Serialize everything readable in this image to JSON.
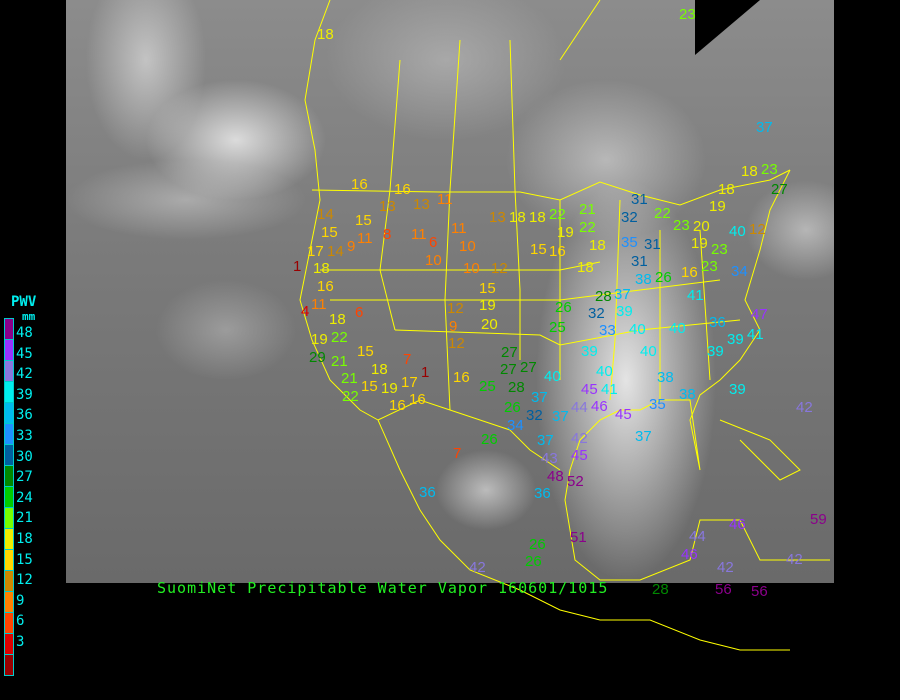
{
  "caption": "SuomiNet Precipitable Water Vapor 160601/1015",
  "legend": {
    "title": "PWV",
    "unit": "mm",
    "labels": [
      "48",
      "45",
      "42",
      "39",
      "36",
      "33",
      "30",
      "27",
      "24",
      "21",
      "18",
      "15",
      "12",
      "9",
      "6",
      "3"
    ],
    "colors": [
      "#8b008b",
      "#9933ff",
      "#8877dd",
      "#00eeee",
      "#00bbee",
      "#1e90ff",
      "#005f9f",
      "#008800",
      "#00cc00",
      "#77ff00",
      "#eeee00",
      "#ffd700",
      "#cc8800",
      "#ff8000",
      "#ff4400",
      "#dd0000",
      "#990000"
    ]
  },
  "border_color": "#ffff00",
  "stations": [
    18,
    16,
    16,
    13,
    13,
    11,
    14,
    15,
    15,
    11,
    9,
    8,
    11,
    6,
    10,
    11,
    10,
    10,
    12,
    1,
    18,
    14,
    17,
    16,
    11,
    4,
    18,
    6,
    19,
    22,
    29,
    21,
    15,
    18,
    21,
    22,
    15,
    19,
    17,
    16,
    16,
    7,
    1,
    16,
    12,
    9,
    12,
    19,
    20,
    15,
    18,
    36,
    7,
    13,
    18,
    22,
    19,
    21,
    22,
    18,
    16,
    18,
    15,
    27,
    27,
    27,
    25,
    28,
    26,
    37,
    32,
    37,
    34,
    40,
    44,
    26,
    37,
    43,
    45,
    48,
    52,
    36,
    42,
    26,
    26,
    51,
    42,
    31,
    32,
    35,
    31,
    31,
    38,
    26,
    37,
    28,
    32,
    39,
    33,
    40,
    26,
    25,
    39,
    40,
    38,
    36,
    39,
    39,
    41,
    47,
    40,
    41,
    45,
    46,
    45,
    35,
    38,
    39,
    42,
    37,
    22,
    23,
    20,
    19,
    23,
    23,
    16,
    19,
    18,
    18,
    23,
    27,
    12,
    34,
    37,
    23,
    40,
    41,
    40,
    46,
    44,
    46,
    42,
    42,
    59,
    28,
    56,
    56
  ]
}
